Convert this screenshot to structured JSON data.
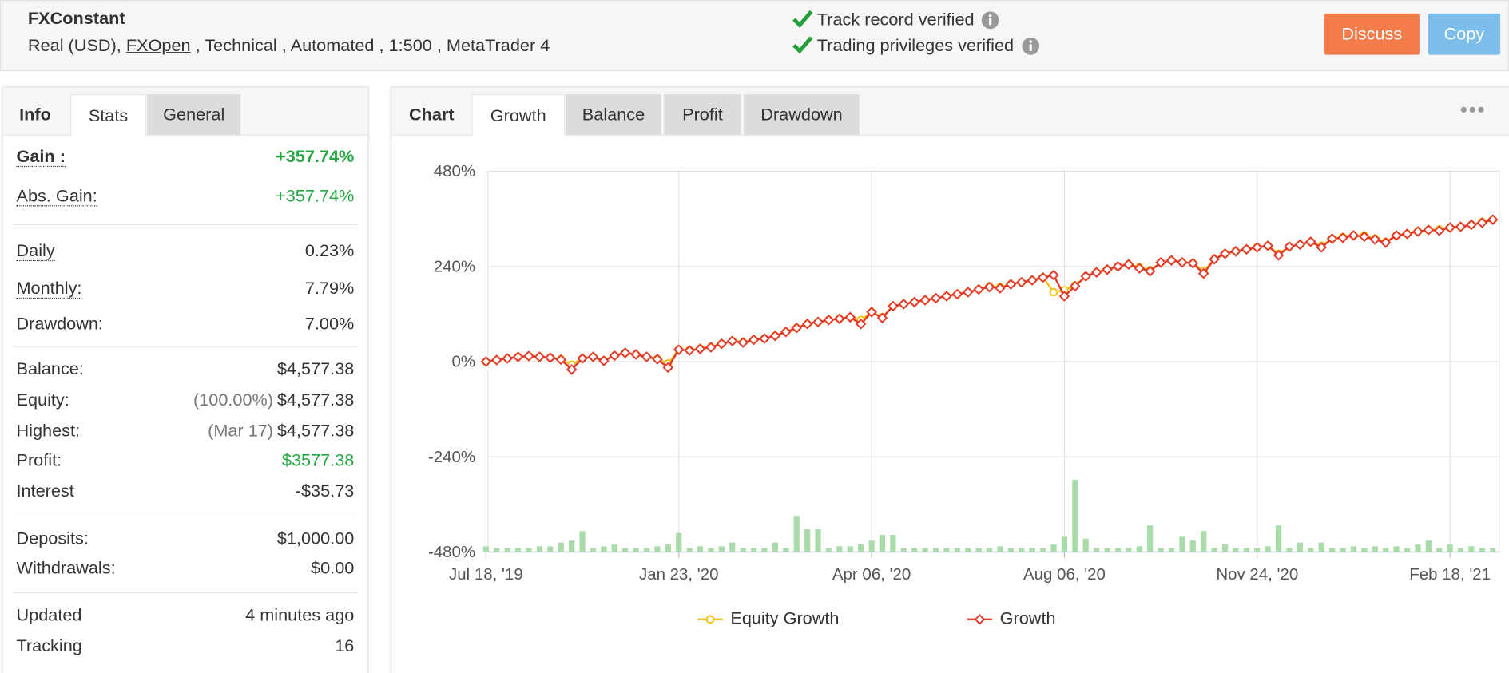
{
  "header": {
    "title": "FXConstant",
    "account_type": "Real (USD),",
    "broker": "FXOpen",
    "details": ", Technical , Automated , 1:500 , MetaTrader 4",
    "verifications": [
      "Track record verified",
      "Trading privileges verified"
    ],
    "buttons": [
      "Discuss",
      "Copy"
    ]
  },
  "stats_panel": {
    "tabs": [
      "Info",
      "Stats",
      "General"
    ],
    "active_tab": 1,
    "groups": [
      [
        {
          "label": "Gain :",
          "value": "+357.74%",
          "bold": true,
          "color": "#27a644",
          "underline": true
        },
        {
          "label": "Abs. Gain:",
          "value": "+357.74%",
          "color": "#27a644",
          "underline": true
        }
      ],
      [
        {
          "label": "Daily",
          "value": "0.23%",
          "underline": true
        },
        {
          "label": "Monthly:",
          "value": "7.79%",
          "underline": true
        },
        {
          "label": "Drawdown:",
          "value": "7.00%"
        }
      ],
      [
        {
          "label": "Balance:",
          "value": "$4,577.38"
        },
        {
          "label": "Equity:",
          "note": "(100.00%)",
          "value": "$4,577.38"
        },
        {
          "label": "Highest:",
          "note": "(Mar 17)",
          "value": "$4,577.38"
        },
        {
          "label": "Profit:",
          "value": "$3577.38",
          "color": "#27a644"
        },
        {
          "label": "Interest",
          "value": "-$35.73"
        }
      ],
      [
        {
          "label": "Deposits:",
          "value": "$1,000.00"
        },
        {
          "label": "Withdrawals:",
          "value": "$0.00"
        }
      ],
      [
        {
          "label": "Updated",
          "value": "4 minutes ago"
        },
        {
          "label": "Tracking",
          "value": "16"
        }
      ]
    ]
  },
  "chart_panel": {
    "label": "Chart",
    "tabs": [
      "Growth",
      "Balance",
      "Profit",
      "Drawdown"
    ],
    "active_tab": 0
  },
  "chart_data": {
    "type": "line",
    "xlim": [
      0,
      95
    ],
    "xticks": [
      {
        "value": 0,
        "label": "Jul 18, '19"
      },
      {
        "value": 18,
        "label": "Jan 23, '20"
      },
      {
        "value": 36,
        "label": "Apr 06, '20"
      },
      {
        "value": 54,
        "label": "Aug 06, '20"
      },
      {
        "value": 72,
        "label": "Nov 24, '20"
      },
      {
        "value": 90,
        "label": "Feb 18, '21"
      }
    ],
    "ylim": [
      -480,
      480
    ],
    "yticks": [
      {
        "value": 480,
        "label": "480%"
      },
      {
        "value": 240,
        "label": "240%"
      },
      {
        "value": 0,
        "label": "0%"
      },
      {
        "value": -240,
        "label": "-240%"
      },
      {
        "value": -480,
        "label": "-480%"
      }
    ],
    "grid": true,
    "series": [
      {
        "name": "Equity Growth",
        "color": "#f2c21b",
        "marker": "circle",
        "values": [
          0,
          4,
          8,
          12,
          14,
          12,
          10,
          6,
          -8,
          8,
          12,
          3,
          15,
          22,
          18,
          12,
          7,
          -5,
          30,
          29,
          33,
          37,
          45,
          52,
          49,
          55,
          58,
          65,
          75,
          85,
          95,
          100,
          105,
          108,
          112,
          105,
          125,
          112,
          140,
          145,
          150,
          155,
          160,
          165,
          170,
          175,
          182,
          190,
          188,
          195,
          200,
          205,
          212,
          175,
          180,
          192,
          215,
          225,
          232,
          240,
          245,
          238,
          230,
          250,
          255,
          250,
          248,
          228,
          258,
          272,
          278,
          283,
          288,
          292,
          272,
          290,
          295,
          302,
          292,
          310,
          314,
          318,
          318,
          310,
          302,
          318,
          322,
          328,
          332,
          333,
          338,
          340,
          345,
          352,
          358
        ]
      },
      {
        "name": "Growth",
        "color": "#e5382b",
        "marker": "diamond",
        "values": [
          0,
          4,
          8,
          12,
          14,
          12,
          10,
          5,
          -20,
          8,
          12,
          2,
          15,
          22,
          18,
          12,
          6,
          -15,
          30,
          28,
          32,
          36,
          45,
          52,
          48,
          55,
          58,
          65,
          75,
          85,
          95,
          100,
          105,
          108,
          112,
          95,
          125,
          110,
          140,
          145,
          150,
          155,
          160,
          165,
          170,
          175,
          182,
          188,
          185,
          195,
          200,
          205,
          212,
          218,
          165,
          190,
          215,
          225,
          232,
          240,
          245,
          235,
          228,
          250,
          255,
          250,
          248,
          222,
          258,
          272,
          278,
          283,
          288,
          292,
          268,
          290,
          295,
          302,
          288,
          310,
          312,
          318,
          315,
          308,
          300,
          318,
          322,
          328,
          332,
          330,
          338,
          340,
          345,
          350,
          358
        ]
      }
    ],
    "volume": {
      "type": "bar",
      "axis": "y2",
      "color": "#a9dcaa",
      "values": [
        1.5,
        1,
        1,
        1,
        1,
        1.5,
        1.5,
        2.5,
        3,
        5.5,
        1,
        1.5,
        2,
        1,
        1,
        1,
        1.5,
        2,
        5,
        1,
        1.5,
        1,
        1.5,
        2.5,
        1,
        1,
        1,
        2.5,
        1,
        9.5,
        6,
        6,
        1,
        1.5,
        1.5,
        2,
        3,
        4.5,
        4.5,
        1,
        1,
        1,
        1,
        1,
        1,
        1,
        1,
        1,
        1.5,
        1,
        1,
        1,
        1,
        2,
        4,
        19,
        3.5,
        1,
        1,
        1,
        1,
        1.5,
        7,
        1,
        1,
        4,
        3,
        5.5,
        1,
        2,
        1,
        1,
        1,
        1.5,
        7,
        1,
        2.5,
        1,
        2.5,
        1,
        1,
        1.5,
        1,
        1.5,
        1,
        1.5,
        1,
        2,
        3,
        1,
        2,
        1,
        1.5,
        1,
        1
      ]
    },
    "y2lim": [
      0,
      100
    ],
    "legend": "bottom"
  }
}
